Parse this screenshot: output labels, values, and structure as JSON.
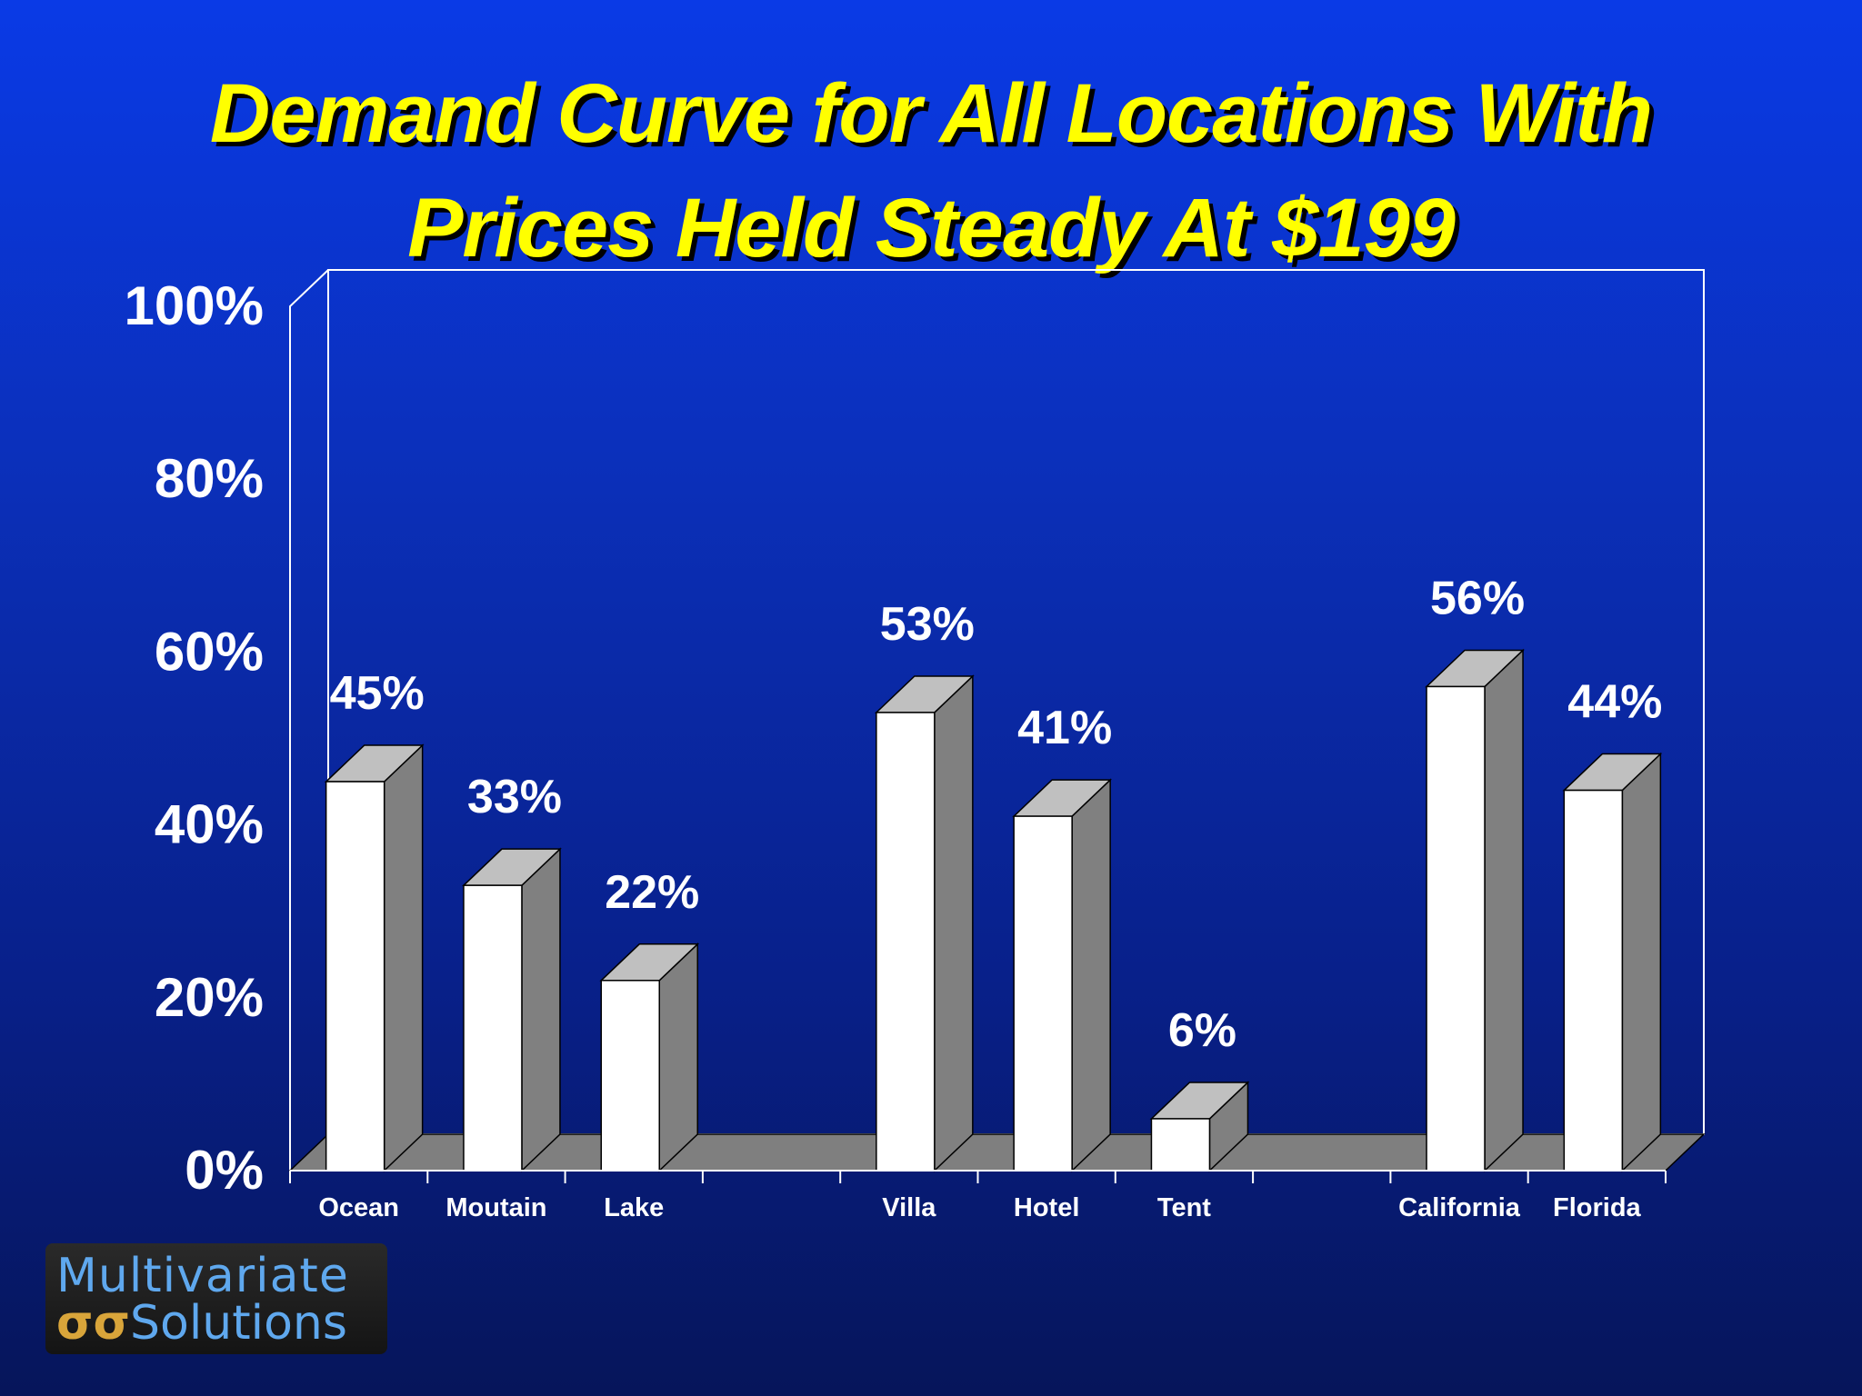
{
  "slide": {
    "title_line1": "Demand Curve for All Locations With",
    "title_line2": "Prices Held Steady At $199"
  },
  "logo": {
    "line1": "Multivariate",
    "symbol": "σσ",
    "line2": "Solutions"
  },
  "colors": {
    "title": "#ffff00",
    "bar_front": "#ffffff",
    "bar_side": "#808080",
    "bar_top": "#c0c0c0",
    "floor": "#7f7f7f",
    "axis": "#ffffff"
  },
  "chart_data": {
    "type": "bar",
    "style": "3d-column",
    "title": "Demand Curve for All Locations With Prices Held Steady At $199",
    "categories": [
      "Ocean",
      "Moutain",
      "Lake",
      "",
      "Villa",
      "Hotel",
      "Tent",
      "",
      "California",
      "Florida"
    ],
    "values": [
      45,
      33,
      22,
      null,
      53,
      41,
      6,
      null,
      56,
      44
    ],
    "data_labels": [
      "45%",
      "33%",
      "22%",
      "",
      "53%",
      "41%",
      "6%",
      "",
      "56%",
      "44%"
    ],
    "y_ticks": [
      "0%",
      "20%",
      "40%",
      "60%",
      "80%",
      "100%"
    ],
    "ylim": [
      0,
      100
    ],
    "y_unit": "%",
    "grid": false,
    "legend": "none"
  }
}
